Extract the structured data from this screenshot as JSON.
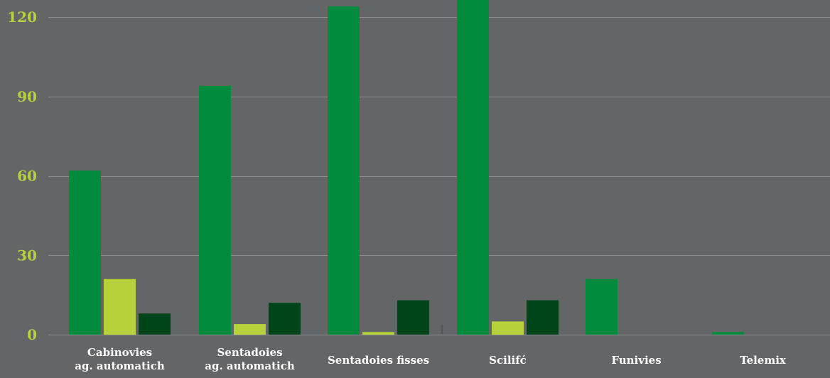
{
  "colors": {
    "background": "#646567",
    "grid": "#8c8d8f",
    "tick_label": "#b6d23a",
    "category_label": "#ffffff"
  },
  "chart_data": {
    "type": "bar",
    "title": "",
    "xlabel": "",
    "ylabel": "",
    "ylim": [
      0,
      130
    ],
    "yticks": [
      "0",
      "30",
      "60",
      "90",
      "120"
    ],
    "grid": true,
    "categories": [
      [
        "Cabinovies",
        "ag. automatich"
      ],
      [
        "Sentadoies",
        "ag. automatich"
      ],
      [
        "Sentadoies fisses"
      ],
      [
        "Scilifć"
      ],
      [
        "Funivies"
      ],
      [
        "Telemix"
      ]
    ],
    "series": [
      {
        "color": "#008c3c",
        "values": [
          62,
          94,
          124,
          127,
          21,
          1
        ]
      },
      {
        "color": "#b6d23a",
        "values": [
          21,
          4,
          1,
          5,
          0,
          0
        ]
      },
      {
        "color": "#004419",
        "values": [
          8,
          12,
          13,
          13,
          0,
          0
        ]
      }
    ]
  }
}
